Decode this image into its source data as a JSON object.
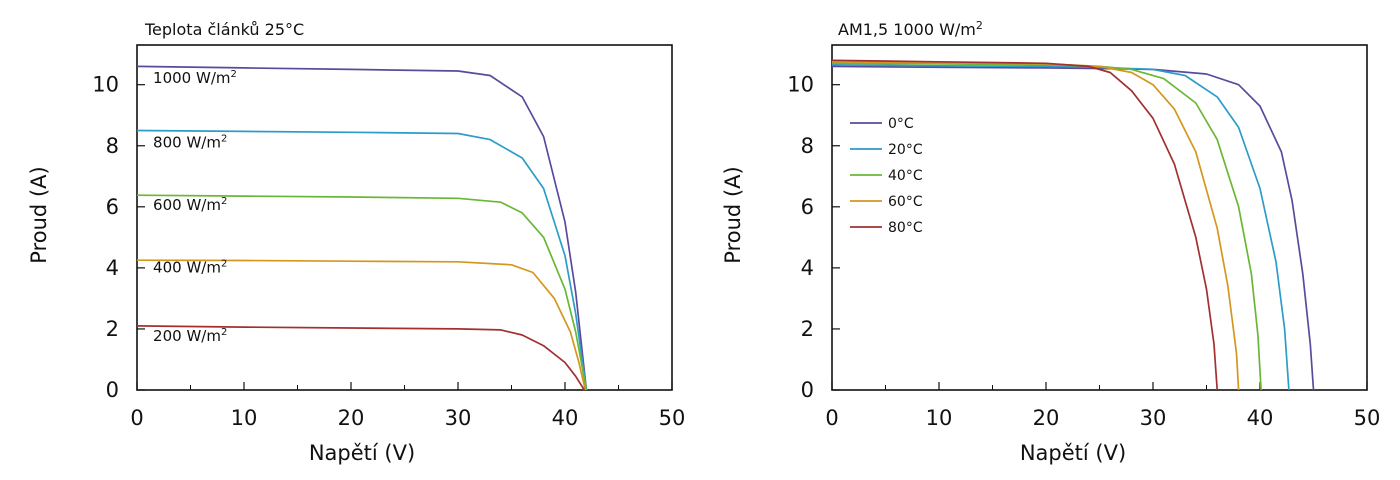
{
  "chart_data": [
    {
      "type": "line",
      "title": "Teplota článků 25°C",
      "xlabel": "Napětí (V)",
      "ylabel": "Proud (A)",
      "xlim": [
        0,
        50
      ],
      "ylim": [
        0,
        11.3
      ],
      "xticks": [
        0,
        10,
        20,
        30,
        40,
        50
      ],
      "yticks": [
        0,
        2,
        4,
        6,
        8,
        10
      ],
      "grid": false,
      "series": [
        {
          "name": "1000 W/m²",
          "color": "#5b4a9c",
          "values": [
            [
              0,
              10.6
            ],
            [
              10,
              10.55
            ],
            [
              20,
              10.5
            ],
            [
              30,
              10.45
            ],
            [
              33,
              10.3
            ],
            [
              36,
              9.6
            ],
            [
              38,
              8.3
            ],
            [
              40,
              5.5
            ],
            [
              41,
              3.2
            ],
            [
              42,
              0
            ]
          ]
        },
        {
          "name": "800 W/m²",
          "color": "#2c9cc8",
          "values": [
            [
              0,
              8.5
            ],
            [
              10,
              8.47
            ],
            [
              20,
              8.44
            ],
            [
              30,
              8.4
            ],
            [
              33,
              8.2
            ],
            [
              36,
              7.6
            ],
            [
              38,
              6.6
            ],
            [
              40,
              4.4
            ],
            [
              41,
              2.5
            ],
            [
              42,
              0
            ]
          ]
        },
        {
          "name": "600 W/m²",
          "color": "#6ab736",
          "values": [
            [
              0,
              6.38
            ],
            [
              10,
              6.35
            ],
            [
              20,
              6.32
            ],
            [
              30,
              6.28
            ],
            [
              34,
              6.15
            ],
            [
              36,
              5.8
            ],
            [
              38,
              5.0
            ],
            [
              40,
              3.3
            ],
            [
              41,
              1.9
            ],
            [
              42,
              0
            ]
          ]
        },
        {
          "name": "400 W/m²",
          "color": "#d4971e",
          "values": [
            [
              0,
              4.25
            ],
            [
              10,
              4.24
            ],
            [
              20,
              4.22
            ],
            [
              30,
              4.2
            ],
            [
              35,
              4.1
            ],
            [
              37,
              3.85
            ],
            [
              39,
              3.0
            ],
            [
              40.5,
              1.9
            ],
            [
              41.3,
              0.9
            ],
            [
              41.9,
              0
            ]
          ]
        },
        {
          "name": "200 W/m²",
          "color": "#a33030",
          "values": [
            [
              0,
              2.1
            ],
            [
              10,
              2.06
            ],
            [
              20,
              2.03
            ],
            [
              30,
              2.0
            ],
            [
              34,
              1.97
            ],
            [
              36,
              1.8
            ],
            [
              38,
              1.45
            ],
            [
              40,
              0.9
            ],
            [
              41,
              0.45
            ],
            [
              41.8,
              0
            ]
          ]
        }
      ],
      "annotations": [
        {
          "text": "1000 W/m",
          "sup": "2",
          "x": 1.5,
          "y": 10.05
        },
        {
          "text": "800 W/m",
          "sup": "2",
          "x": 1.5,
          "y": 7.95
        },
        {
          "text": "600 W/m",
          "sup": "2",
          "x": 1.5,
          "y": 5.9
        },
        {
          "text": "400 W/m",
          "sup": "2",
          "x": 1.5,
          "y": 3.85
        },
        {
          "text": "200 W/m",
          "sup": "2",
          "x": 1.5,
          "y": 1.6
        }
      ]
    },
    {
      "type": "line",
      "title": "AM1,5 1000 W/m",
      "title_sup": "2",
      "xlabel": "Napětí (V)",
      "ylabel": "Proud (A)",
      "xlim": [
        0,
        50
      ],
      "ylim": [
        0,
        11.3
      ],
      "xticks": [
        0,
        10,
        20,
        30,
        40,
        50
      ],
      "yticks": [
        0,
        2,
        4,
        6,
        8,
        10
      ],
      "grid": false,
      "legend": "top-left",
      "series": [
        {
          "name": "0°C",
          "color": "#5b4a9c",
          "values": [
            [
              0,
              10.6
            ],
            [
              10,
              10.57
            ],
            [
              20,
              10.55
            ],
            [
              25,
              10.53
            ],
            [
              30,
              10.5
            ],
            [
              35,
              10.35
            ],
            [
              38,
              10.0
            ],
            [
              40,
              9.3
            ],
            [
              42,
              7.8
            ],
            [
              43,
              6.2
            ],
            [
              44,
              3.8
            ],
            [
              44.7,
              1.5
            ],
            [
              45,
              0
            ]
          ]
        },
        {
          "name": "20°C",
          "color": "#2c9cc8",
          "values": [
            [
              0,
              10.65
            ],
            [
              10,
              10.62
            ],
            [
              20,
              10.6
            ],
            [
              25,
              10.57
            ],
            [
              30,
              10.5
            ],
            [
              33,
              10.3
            ],
            [
              36,
              9.6
            ],
            [
              38,
              8.6
            ],
            [
              40,
              6.6
            ],
            [
              41.5,
              4.2
            ],
            [
              42.3,
              2.0
            ],
            [
              42.7,
              0
            ]
          ]
        },
        {
          "name": "40°C",
          "color": "#6ab736",
          "values": [
            [
              0,
              10.7
            ],
            [
              10,
              10.68
            ],
            [
              20,
              10.65
            ],
            [
              25,
              10.6
            ],
            [
              28,
              10.5
            ],
            [
              31,
              10.2
            ],
            [
              34,
              9.4
            ],
            [
              36,
              8.2
            ],
            [
              38,
              6.0
            ],
            [
              39.2,
              3.8
            ],
            [
              39.8,
              1.8
            ],
            [
              40.1,
              0
            ]
          ]
        },
        {
          "name": "60°C",
          "color": "#d4971e",
          "values": [
            [
              0,
              10.75
            ],
            [
              10,
              10.72
            ],
            [
              20,
              10.68
            ],
            [
              25,
              10.6
            ],
            [
              28,
              10.4
            ],
            [
              30,
              10.0
            ],
            [
              32,
              9.2
            ],
            [
              34,
              7.8
            ],
            [
              36,
              5.3
            ],
            [
              37,
              3.4
            ],
            [
              37.8,
              1.2
            ],
            [
              38,
              0
            ]
          ]
        },
        {
          "name": "80°C",
          "color": "#a33030",
          "values": [
            [
              0,
              10.8
            ],
            [
              10,
              10.75
            ],
            [
              20,
              10.7
            ],
            [
              24,
              10.6
            ],
            [
              26,
              10.4
            ],
            [
              28,
              9.8
            ],
            [
              30,
              8.9
            ],
            [
              32,
              7.4
            ],
            [
              34,
              5.0
            ],
            [
              35,
              3.3
            ],
            [
              35.7,
              1.5
            ],
            [
              36,
              0
            ]
          ]
        }
      ]
    }
  ]
}
